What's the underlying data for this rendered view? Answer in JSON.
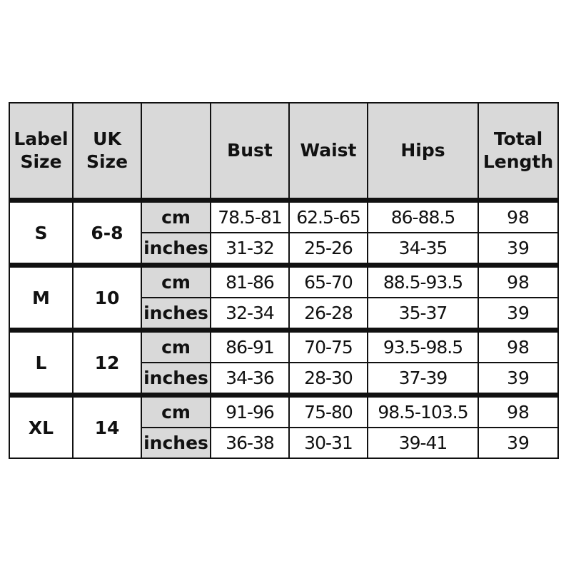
{
  "headers": [
    "Label Size",
    "UK Size",
    "",
    "Bust",
    "Waist",
    "Hips",
    "Total Length"
  ],
  "header_lines": [
    [
      "Label",
      "Size"
    ],
    [
      "UK",
      "Size"
    ],
    [
      ""
    ],
    [
      "Bust"
    ],
    [
      "Waist"
    ],
    [
      "Hips"
    ],
    [
      "Total",
      "Length"
    ]
  ],
  "groups": [
    {
      "label": "S",
      "uk": "6-8",
      "rows": [
        {
          "unit": "cm",
          "bust": "78.5-81",
          "waist": "62.5-65",
          "hips": "86-88.5",
          "length": "98"
        },
        {
          "unit": "inches",
          "bust": "31-32",
          "waist": "25-26",
          "hips": "34-35",
          "length": "39"
        }
      ]
    },
    {
      "label": "M",
      "uk": "10",
      "rows": [
        {
          "unit": "cm",
          "bust": "81-86",
          "waist": "65-70",
          "hips": "88.5-93.5",
          "length": "98"
        },
        {
          "unit": "inches",
          "bust": "32-34",
          "waist": "26-28",
          "hips": "35-37",
          "length": "39"
        }
      ]
    },
    {
      "label": "L",
      "uk": "12",
      "rows": [
        {
          "unit": "cm",
          "bust": "86-91",
          "waist": "70-75",
          "hips": "93.5-98.5",
          "length": "98"
        },
        {
          "unit": "inches",
          "bust": "34-36",
          "waist": "28-30",
          "hips": "37-39",
          "length": "39"
        }
      ]
    },
    {
      "label": "XL",
      "uk": "14",
      "rows": [
        {
          "unit": "cm",
          "bust": "91-96",
          "waist": "75-80",
          "hips": "98.5-103.5",
          "length": "98"
        },
        {
          "unit": "inches",
          "bust": "36-38",
          "waist": "30-31",
          "hips": "39-41",
          "length": "39"
        }
      ]
    }
  ],
  "colors": {
    "header_bg": "#d9d9d9",
    "unit_bg": "#d9d9d9",
    "border": "#111111"
  }
}
